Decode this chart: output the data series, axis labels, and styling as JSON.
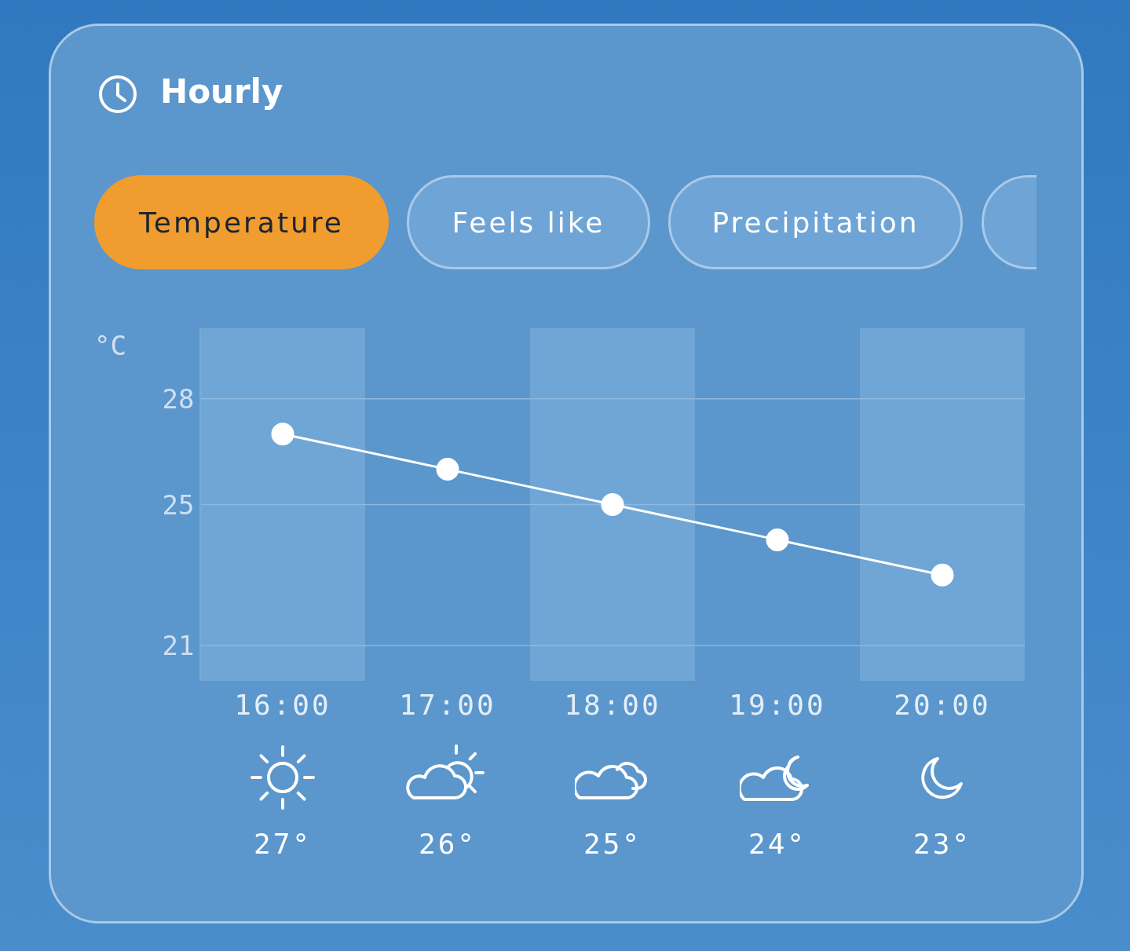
{
  "chart_data": {
    "type": "line",
    "title": "Hourly",
    "ylabel": "°C",
    "annotations": [
      "Temperature",
      "Feels like",
      "Precipitation"
    ],
    "categories": [
      "16:00",
      "17:00",
      "18:00",
      "19:00",
      "20:00"
    ],
    "series": [
      {
        "color": "#ffffff",
        "values": [
          27,
          26,
          25,
          24,
          23
        ],
        "value_labels": [
          "27°",
          "26°",
          "25°",
          "24°",
          "23°"
        ]
      }
    ],
    "ylim": [
      20,
      30
    ],
    "yticks": [
      21,
      25,
      28
    ],
    "grid": "y",
    "marker": "circle",
    "line_style": "solid",
    "legend": false,
    "bands": [
      {
        "axis": "x",
        "from": "16:00",
        "to": "16:00",
        "color": "#70a6d6"
      },
      {
        "axis": "x",
        "from": "18:00",
        "to": "18:00",
        "color": "#70a6d6"
      },
      {
        "axis": "x",
        "from": "20:00",
        "to": "20:00",
        "color": "#70a6d6"
      }
    ]
  }
}
